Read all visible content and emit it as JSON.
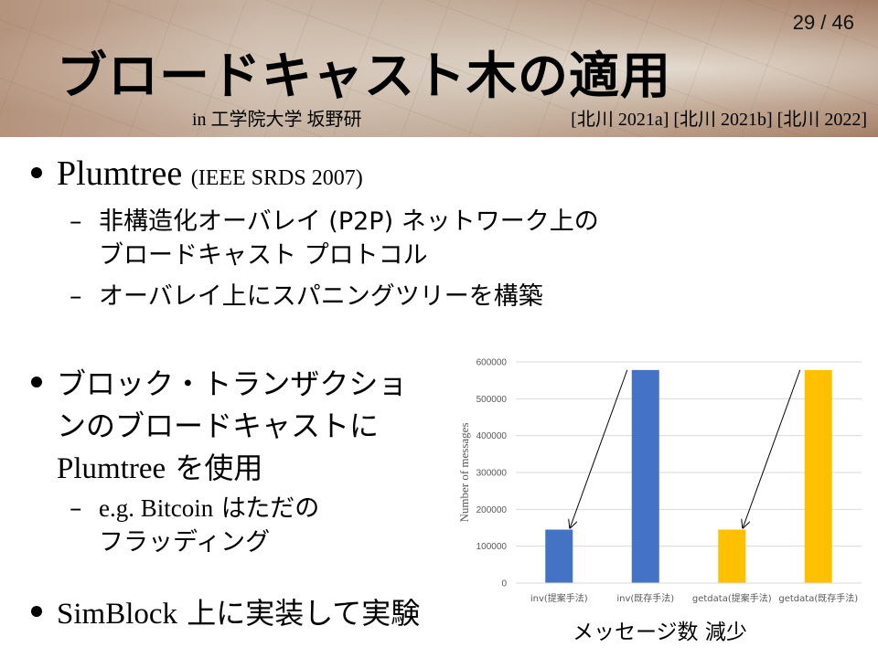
{
  "slide": {
    "page_number": "29 / 46",
    "title": "ブロードキャスト木の適用",
    "subtitle": "in 工学院大学 坂野研",
    "references": "[北川 2021a] [北川 2021b] [北川 2022]"
  },
  "bullets": {
    "b1": {
      "main": "Plumtree",
      "note": "(IEEE SRDS 2007)",
      "subs": [
        {
          "lines": [
            "非構造化オーバレイ (P2P) ネットワーク上の",
            "ブロードキャスト プロトコル"
          ]
        },
        {
          "lines": [
            "オーバレイ上にスパニングツリーを構築"
          ]
        }
      ]
    },
    "b2": {
      "line1": "ブロック・トランザクショ",
      "line2": "ンのブロードキャストに",
      "line3_serif": "Plumtree",
      "line3_rest": " を使用",
      "sub": {
        "serif": "e.g. Bitcoin",
        "rest": " はただの",
        "line2": "フラッディング"
      }
    },
    "b3": {
      "serif": "SimBlock",
      "rest": " 上に実装して実験"
    }
  },
  "caption": "メッセージ数 減少",
  "colors": {
    "blue": "#4472C4",
    "gold": "#FFC000",
    "grid": "#D9D9D9",
    "axis_text": "#595959"
  },
  "chart_data": {
    "type": "bar",
    "categories": [
      "inv(提案手法)",
      "inv(既存手法)",
      "getdata(提案手法)",
      "getdata(既存手法)"
    ],
    "values": [
      145000,
      578000,
      145000,
      578000
    ],
    "bar_colors": [
      "#4472C4",
      "#4472C4",
      "#FFC000",
      "#FFC000"
    ],
    "ylabel": "Number of messages",
    "ylim": [
      0,
      600000
    ],
    "yticks": [
      0,
      100000,
      200000,
      300000,
      400000,
      500000,
      600000
    ],
    "ytick_labels": [
      "0",
      "100000",
      "200000",
      "300000",
      "400000",
      "500000",
      "600000"
    ],
    "grid": true,
    "annotations": [
      {
        "type": "arrow",
        "from_category": 1,
        "to_category": 0
      },
      {
        "type": "arrow",
        "from_category": 3,
        "to_category": 2
      }
    ]
  }
}
